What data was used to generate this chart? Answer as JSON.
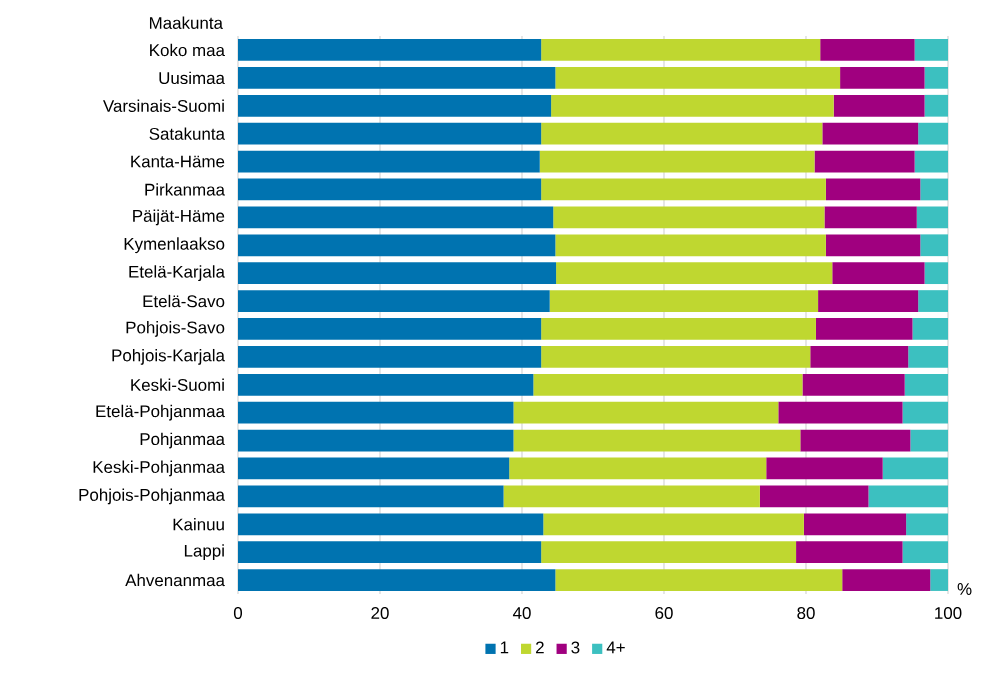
{
  "chart_data": {
    "type": "bar",
    "orientation": "horizontal",
    "stacked": true,
    "ylabel": "Maakunta",
    "xlabel": "%",
    "categories": [
      "Koko maa",
      "Uusimaa",
      "Varsinais-Suomi",
      "Satakunta",
      "Kanta-Häme",
      "Pirkanmaa",
      "Päijät-Häme",
      "Kymenlaakso",
      "Etelä-Karjala",
      "Etelä-Savo",
      "Pohjois-Savo",
      "Pohjois-Karjala",
      "Keski-Suomi",
      "Etelä-Pohjanmaa",
      "Pohjanmaa",
      "Keski-Pohjanmaa",
      "Pohjois-Pohjanmaa",
      "Kainuu",
      "Lappi",
      "Ahvenanmaa"
    ],
    "series": [
      {
        "name": "1",
        "color": "#0073b0",
        "values": [
          42.7,
          44.7,
          44.1,
          42.7,
          42.5,
          42.7,
          44.4,
          44.7,
          44.8,
          43.9,
          42.7,
          42.7,
          41.6,
          38.8,
          38.8,
          38.2,
          37.4,
          43.0,
          42.7,
          44.7
        ]
      },
      {
        "name": "2",
        "color": "#bfd730",
        "values": [
          39.3,
          40.1,
          39.8,
          39.6,
          38.7,
          40.1,
          38.2,
          38.1,
          38.9,
          37.8,
          38.7,
          37.9,
          37.9,
          37.3,
          40.4,
          36.2,
          36.1,
          36.7,
          35.9,
          40.4
        ]
      },
      {
        "name": "3",
        "color": "#a0007f",
        "values": [
          13.3,
          11.9,
          12.8,
          13.5,
          14.1,
          13.3,
          13.0,
          13.3,
          13.0,
          14.1,
          13.6,
          13.8,
          14.4,
          17.5,
          15.5,
          16.4,
          15.3,
          14.4,
          15.0,
          12.4
        ]
      },
      {
        "name": "4+",
        "color": "#3cc0c0",
        "values": [
          4.7,
          3.3,
          3.3,
          4.2,
          4.7,
          3.9,
          4.4,
          3.9,
          3.3,
          4.2,
          5.0,
          5.6,
          6.1,
          6.4,
          5.3,
          9.2,
          11.2,
          5.9,
          6.4,
          2.5
        ]
      }
    ],
    "xlim": [
      0,
      100
    ],
    "xticks": [
      0,
      20,
      40,
      60,
      80,
      100
    ],
    "grid": "x",
    "legend": "bottom"
  }
}
